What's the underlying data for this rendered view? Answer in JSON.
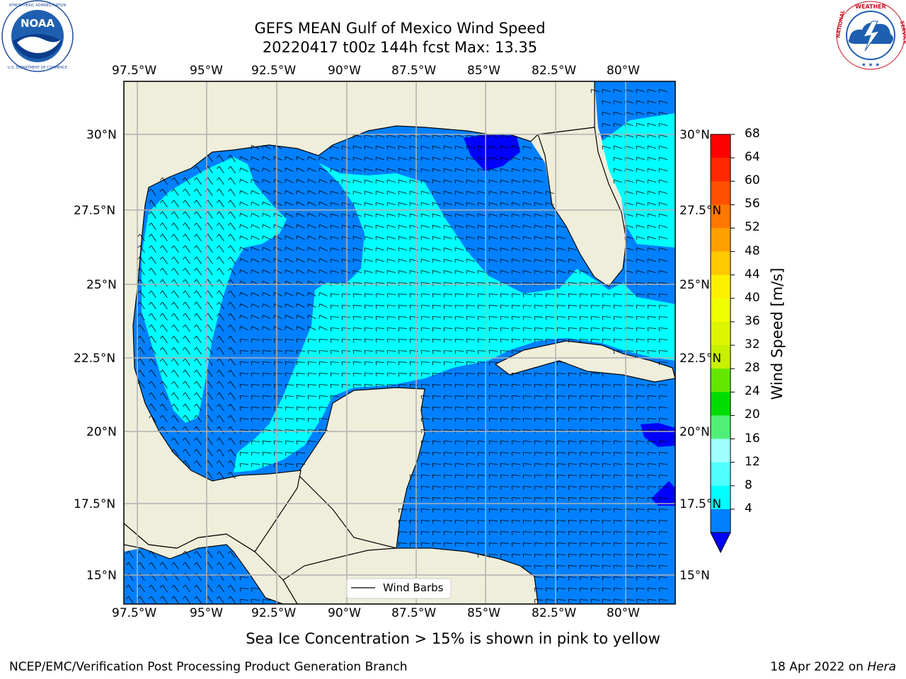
{
  "header": {
    "title_line1": "GEFS MEAN Gulf of Mexico Wind Speed",
    "title_line2": "20220417 t00z 144h fcst   Max: 13.35"
  },
  "logos": {
    "left": "NOAA",
    "left_ring_text": "NATIONAL OCEANIC AND ATMOSPHERIC ADMINISTRATION · U.S. DEPARTMENT OF COMMERCE",
    "right_ring_text": "NATIONAL WEATHER SERVICE"
  },
  "axes": {
    "lon_labels": [
      "97.5°W",
      "95°W",
      "92.5°W",
      "90°W",
      "87.5°W",
      "85°W",
      "82.5°W",
      "80°W"
    ],
    "lat_labels_left": [
      "30°N",
      "27.5°N",
      "25°N",
      "22.5°N",
      "20°N",
      "17.5°N",
      "15°N"
    ],
    "lat_labels_right": [
      "30°N",
      "27.5°N",
      "25°N",
      "22.5°N",
      "20°N",
      "17.5°N",
      "15°N"
    ]
  },
  "legend": {
    "wind_barbs_label": "Wind Barbs"
  },
  "colorbar": {
    "label": "Wind Speed [m/s]",
    "ticks": [
      "68",
      "64",
      "60",
      "56",
      "52",
      "48",
      "44",
      "40",
      "36",
      "32",
      "28",
      "24",
      "20",
      "16",
      "12",
      "8",
      "4"
    ],
    "colors": [
      "#ff0000",
      "#ff2800",
      "#ff5000",
      "#ff7800",
      "#ffa000",
      "#ffc800",
      "#fff000",
      "#f0ff00",
      "#dcf500",
      "#c8f000",
      "#64e600",
      "#00dc00",
      "#50f078",
      "#a0ffff",
      "#50ffff",
      "#00ffff",
      "#0080ff"
    ],
    "extend_color": "#0000ff"
  },
  "map_colors": {
    "land": "#efeedb",
    "wind_4_8": "#0080ff",
    "wind_8_12": "#00ffff",
    "wind_below_4": "#0000ff"
  },
  "caption": "Sea Ice Concentration > 15% is shown in pink to yellow",
  "footer": {
    "left": "NCEP/EMC/Verification Post Processing Product Generation Branch",
    "right_prefix": "18 Apr 2022 on",
    "right_machine": "Hera"
  }
}
